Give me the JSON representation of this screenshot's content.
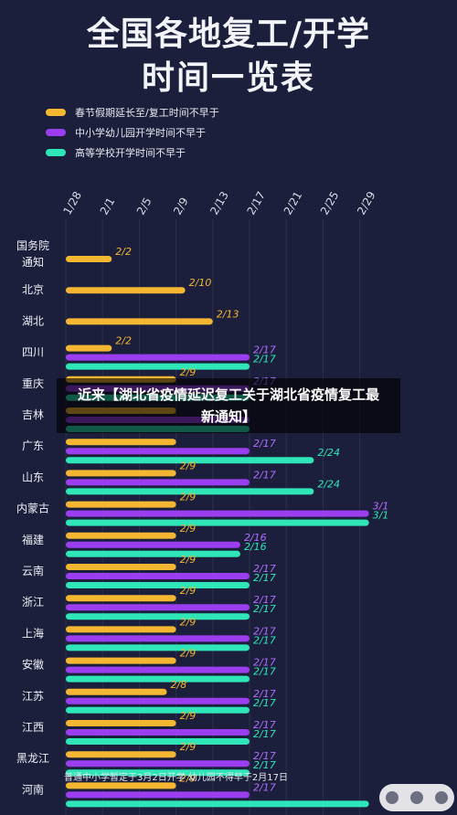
{
  "header": {
    "title_line1": "全国各地复工/开学",
    "title_line2": "时间一览表"
  },
  "legend": [
    {
      "label": "春节假期延长至/复工时间不早于",
      "color": "#f5b731"
    },
    {
      "label": "中小学幼儿园开学时间不早于",
      "color": "#9b3ef0"
    },
    {
      "label": "高等学校开学时间不早于",
      "color": "#2ee6b8"
    }
  ],
  "overlay": {
    "text": "近来【湖北省疫情延迟复工关于湖北省疫情复工最新通知】"
  },
  "note": {
    "text": "普通中小学暂定于3月2日开学 幼儿园不得早于2月17日"
  },
  "chart_data": {
    "type": "bar",
    "orientation": "horizontal",
    "x_ticks": [
      "1/28",
      "2/1",
      "2/5",
      "2/9",
      "2/13",
      "2/17",
      "2/21",
      "2/25",
      "2/29"
    ],
    "series": [
      {
        "name": "春节假期延长至/复工时间不早于",
        "color": "#f5b731",
        "values": [
          "2/2",
          "2/10",
          "2/13",
          "2/2",
          "2/9",
          "2/9",
          "2/9",
          "2/9",
          "2/9",
          "2/9",
          "2/9",
          "2/9",
          "2/9",
          "2/9",
          "2/8",
          "2/9",
          "2/9",
          "2/9"
        ]
      },
      {
        "name": "中小学幼儿园开学时间不早于",
        "color": "#9b3ef0",
        "values": [
          null,
          null,
          null,
          "2/17",
          "2/17",
          "2/17",
          "2/17",
          "2/17",
          "3/1",
          "2/16",
          "2/17",
          "2/17",
          "2/17",
          "2/17",
          "2/17",
          "2/17",
          "2/17",
          "2/17"
        ]
      },
      {
        "name": "高等学校开学时间不早于",
        "color": "#2ee6b8",
        "values": [
          null,
          null,
          null,
          "2/17",
          "2/17",
          "2/17",
          "2/24",
          "2/24",
          "3/1",
          "2/16",
          "2/17",
          "2/17",
          "2/17",
          "2/17",
          "2/17",
          "2/17",
          "2/17",
          "3/1"
        ]
      }
    ],
    "categories": [
      "国务院通知",
      "北京",
      "湖北",
      "四川",
      "重庆",
      "吉林",
      "广东",
      "山东",
      "内蒙古",
      "福建",
      "云南",
      "浙江",
      "上海",
      "安徽",
      "江苏",
      "江西",
      "黑龙江",
      "河南"
    ],
    "bar_labels_shown": [
      [
        "2/2",
        null,
        null
      ],
      [
        "2/10",
        null,
        null
      ],
      [
        "2/13",
        null,
        null
      ],
      [
        "2/2",
        "2/17",
        "2/17"
      ],
      [
        "2/9",
        "2/17",
        null
      ],
      [
        null,
        null,
        null
      ],
      [
        null,
        "2/17",
        "2/24"
      ],
      [
        "2/9",
        "2/17",
        "2/24"
      ],
      [
        "2/9",
        "3/1",
        "3/1"
      ],
      [
        "2/9",
        "2/16",
        "2/16"
      ],
      [
        "2/9",
        "2/17",
        "2/17"
      ],
      [
        "2/9",
        "2/17",
        "2/17"
      ],
      [
        "2/9",
        "2/17",
        "2/17"
      ],
      [
        "2/9",
        "2/17",
        "2/17"
      ],
      [
        "2/8",
        "2/17",
        "2/17"
      ],
      [
        "2/9",
        "2/17",
        "2/17"
      ],
      [
        "2/9",
        "2/17",
        "2/17"
      ],
      [
        "2/9",
        "2/17",
        null
      ]
    ]
  }
}
